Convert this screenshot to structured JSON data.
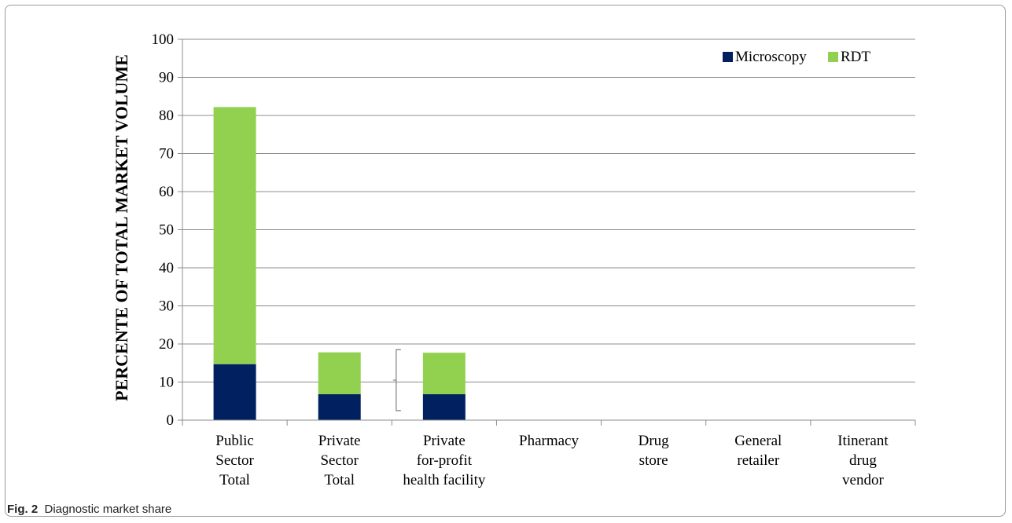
{
  "figure": {
    "caption_label": "Fig. 2",
    "caption_text": "Diagnostic market share"
  },
  "chart_data": {
    "type": "bar",
    "stacked": true,
    "title": "",
    "xlabel": "",
    "ylabel": "PERCENTE OF TOTAL MARKET VOLUME",
    "ylim": [
      0,
      100
    ],
    "yticks": [
      0,
      10,
      20,
      30,
      40,
      50,
      60,
      70,
      80,
      90,
      100
    ],
    "grid": true,
    "legend_position": "top-right",
    "categories": [
      [
        "Public",
        "Sector",
        "Total"
      ],
      [
        "Private",
        "Sector",
        "Total"
      ],
      [
        "Private",
        "for-profit",
        "health facility"
      ],
      [
        "Pharmacy"
      ],
      [
        "Drug",
        "store"
      ],
      [
        "General",
        "retailer"
      ],
      [
        "Itinerant",
        "drug",
        "vendor"
      ]
    ],
    "series": [
      {
        "name": "Microscopy",
        "color": "#002060",
        "values": [
          14.7,
          6.8,
          6.8,
          0,
          0,
          0,
          0
        ]
      },
      {
        "name": "RDT",
        "color": "#92D050",
        "values": [
          67.5,
          11.0,
          10.9,
          0,
          0,
          0,
          0
        ]
      }
    ],
    "annotations": [
      {
        "type": "bracket",
        "category_index": 2,
        "from": 2.5,
        "to": 18.5,
        "color": "#7f7f7f"
      }
    ]
  }
}
